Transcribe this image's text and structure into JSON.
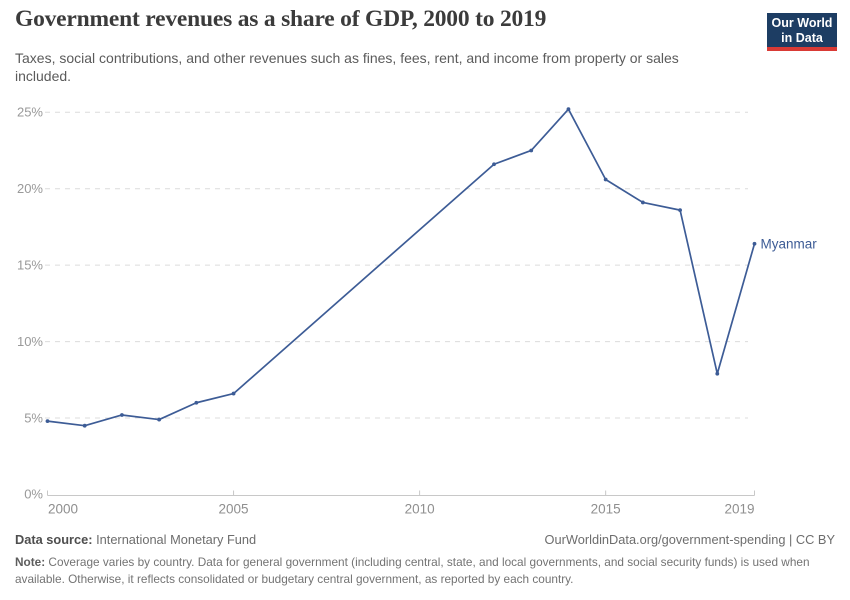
{
  "header": {
    "title": "Government revenues as a share of GDP, 2000 to 2019",
    "subtitle": "Taxes, social contributions, and other revenues such as fines, fees, rent, and income from property or sales included.",
    "logo": {
      "line1": "Our World",
      "line2": "in Data"
    }
  },
  "chart_data": {
    "type": "line",
    "title": "Government revenues as a share of GDP, 2000 to 2019",
    "xlabel": "",
    "ylabel": "",
    "unit": "% of GDP",
    "xlim": [
      2000,
      2019
    ],
    "ylim": [
      0,
      26
    ],
    "grid": "horizontal-dashed",
    "legend_position": "end-of-line",
    "series": [
      {
        "name": "Myanmar",
        "color": "#3d5c96",
        "points": [
          {
            "x": 2000,
            "y": 4.8
          },
          {
            "x": 2001,
            "y": 4.5
          },
          {
            "x": 2002,
            "y": 5.2
          },
          {
            "x": 2003,
            "y": 4.9
          },
          {
            "x": 2004,
            "y": 6.0
          },
          {
            "x": 2005,
            "y": 6.6
          },
          {
            "x": 2012,
            "y": 21.6
          },
          {
            "x": 2013,
            "y": 22.5
          },
          {
            "x": 2014,
            "y": 25.2
          },
          {
            "x": 2015,
            "y": 20.6
          },
          {
            "x": 2016,
            "y": 19.1
          },
          {
            "x": 2017,
            "y": 18.6
          },
          {
            "x": 2018,
            "y": 7.9
          },
          {
            "x": 2019,
            "y": 16.4
          }
        ]
      }
    ],
    "yticks": [
      {
        "value": 0,
        "label": "0%"
      },
      {
        "value": 5,
        "label": "5%"
      },
      {
        "value": 10,
        "label": "10%"
      },
      {
        "value": 15,
        "label": "15%"
      },
      {
        "value": 20,
        "label": "20%"
      },
      {
        "value": 25,
        "label": "25%"
      }
    ],
    "xticks": [
      {
        "value": 2000,
        "label": "2000",
        "anchor": "start"
      },
      {
        "value": 2005,
        "label": "2005",
        "anchor": "middle"
      },
      {
        "value": 2010,
        "label": "2010",
        "anchor": "middle"
      },
      {
        "value": 2015,
        "label": "2015",
        "anchor": "middle"
      },
      {
        "value": 2019,
        "label": "2019",
        "anchor": "end"
      }
    ]
  },
  "footer": {
    "datasource_label": "Data source:",
    "datasource_value": " International Monetary Fund",
    "link": "OurWorldinData.org/government-spending | CC BY",
    "note_label": "Note:",
    "note_text": " Coverage varies by country. Data for general government (including central, state, and local governments, and social security funds) is used when available. Otherwise, it reflects consolidated or budgetary central government, as reported by each country."
  },
  "colors": {
    "line": "#3d5c96",
    "grid": "#dcdcdc",
    "axis": "#c8c8c8",
    "tick_text": "#999999",
    "logo_bg": "#1d3d63",
    "logo_accent": "#d93a35"
  }
}
